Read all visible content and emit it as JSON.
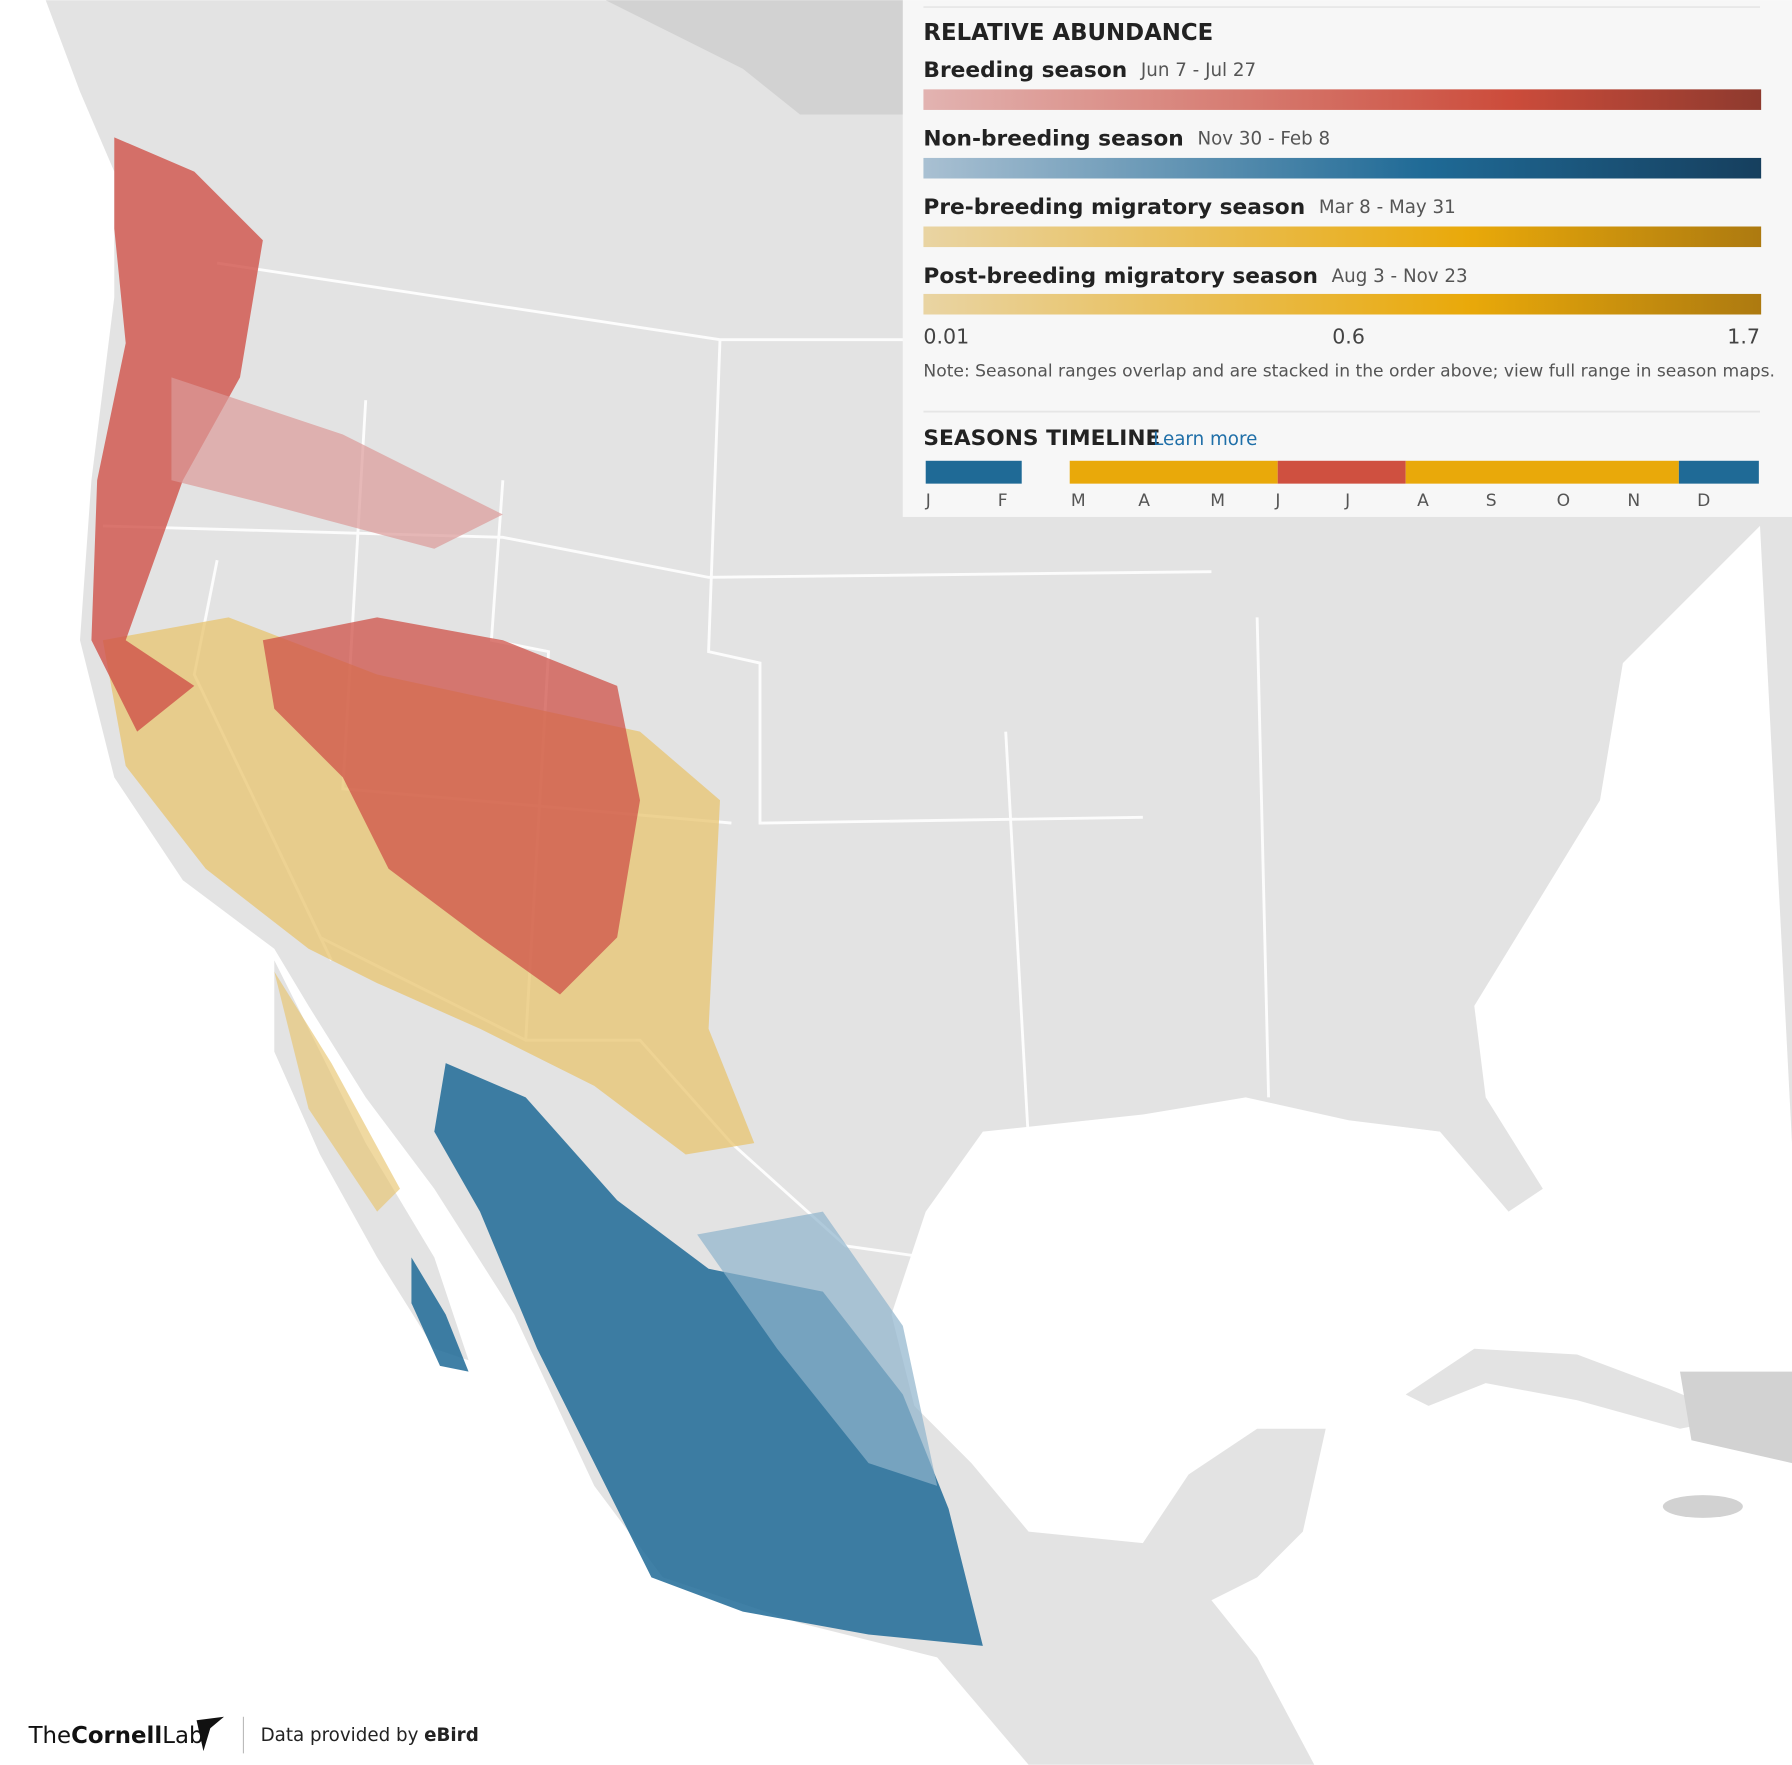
{
  "legend": {
    "title": "RELATIVE ABUNDANCE",
    "seasons": [
      {
        "name": "Breeding season",
        "dates": "Jun 7 - Jul 27"
      },
      {
        "name": "Non-breeding season",
        "dates": "Nov 30 - Feb 8"
      },
      {
        "name": "Pre-breeding migratory season",
        "dates": "Mar 8 - May 31"
      },
      {
        "name": "Post-breeding migratory season",
        "dates": "Aug 3 - Nov 23"
      }
    ],
    "scale": [
      0.01,
      0.6,
      1.7
    ],
    "note": "Note: Seasonal ranges overlap and are stacked in the order above; view full range in season maps."
  },
  "timeline": {
    "title": "SEASONS TIMELINE",
    "link": "Learn more",
    "months": [
      "J",
      "F",
      "M",
      "A",
      "M",
      "J",
      "J",
      "A",
      "S",
      "O",
      "N",
      "D"
    ]
  },
  "footer": {
    "logo": [
      "The",
      "Cornell",
      "Lab"
    ],
    "credit": "Data provided by",
    "source": "eBird"
  }
}
